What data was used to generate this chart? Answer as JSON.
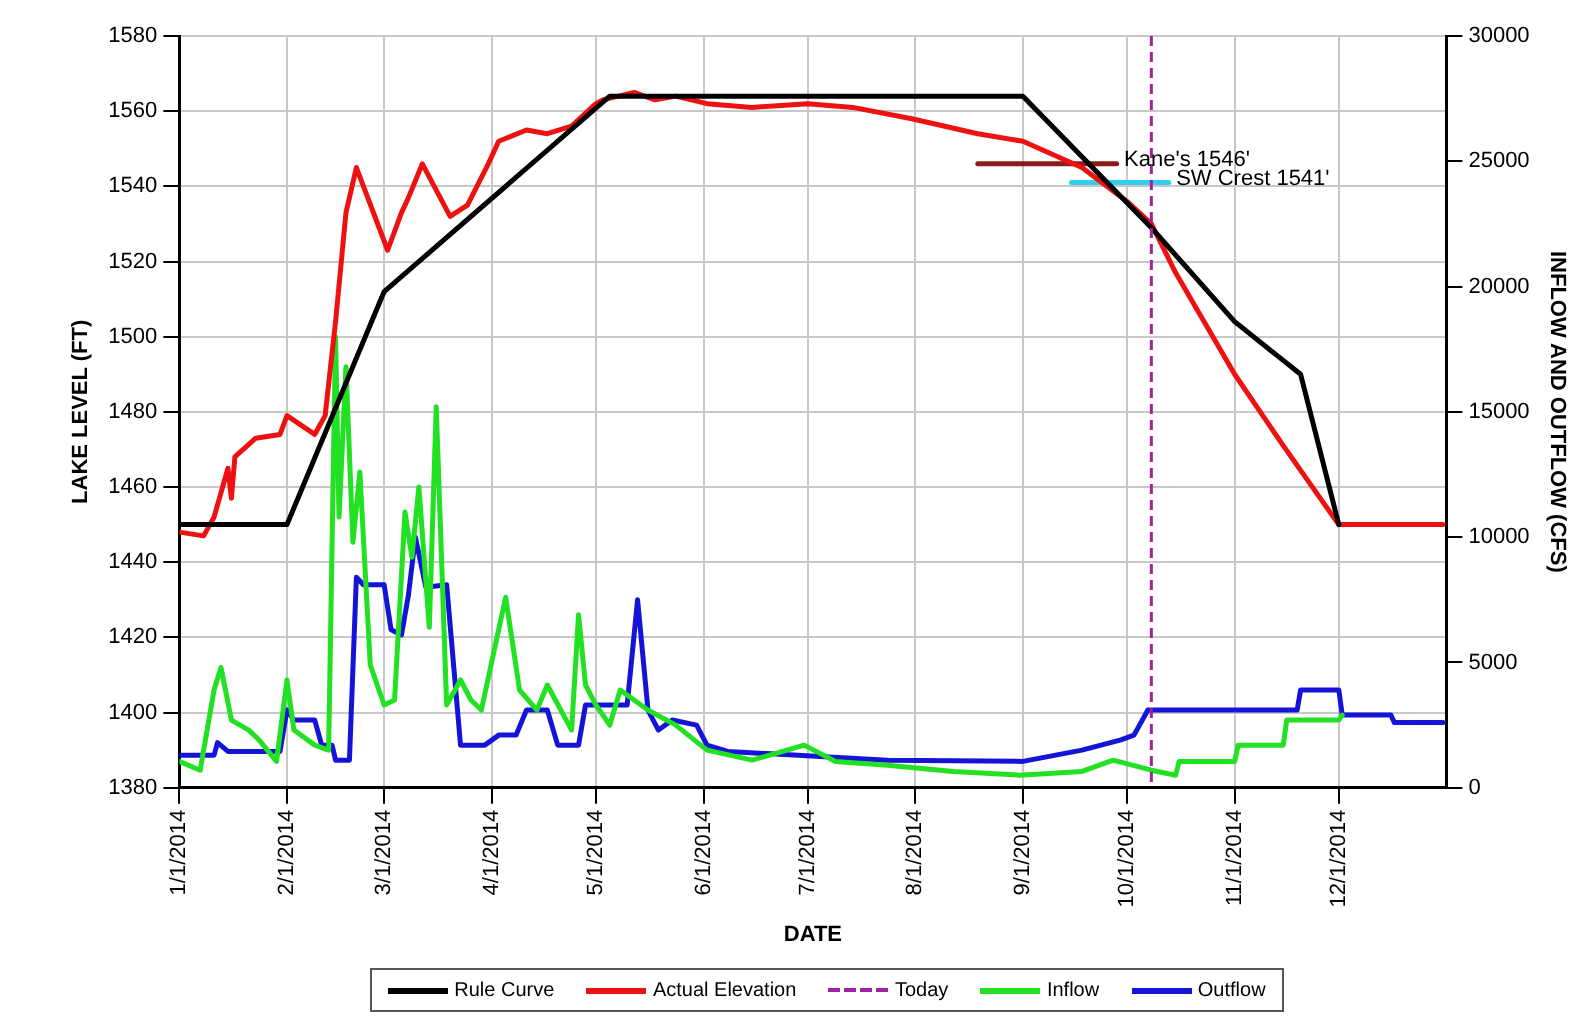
{
  "chart_data": {
    "type": "line",
    "xlabel": "DATE",
    "ylabel": "LAKE LEVEL (FT)",
    "y2label": "INFLOW AND OUTFLOW (CFS)",
    "xlim": [
      "2014-01-01",
      "2015-01-01"
    ],
    "xticks": [
      {
        "value": "2014-01-01",
        "label": "1/1/2014"
      },
      {
        "value": "2014-02-01",
        "label": "2/1/2014"
      },
      {
        "value": "2014-03-01",
        "label": "3/1/2014"
      },
      {
        "value": "2014-04-01",
        "label": "4/1/2014"
      },
      {
        "value": "2014-05-01",
        "label": "5/1/2014"
      },
      {
        "value": "2014-06-01",
        "label": "6/1/2014"
      },
      {
        "value": "2014-07-01",
        "label": "7/1/2014"
      },
      {
        "value": "2014-08-01",
        "label": "8/1/2014"
      },
      {
        "value": "2014-09-01",
        "label": "9/1/2014"
      },
      {
        "value": "2014-10-01",
        "label": "10/1/2014"
      },
      {
        "value": "2014-11-01",
        "label": "11/1/2014"
      },
      {
        "value": "2014-12-01",
        "label": "12/1/2014"
      }
    ],
    "ylim": [
      1380,
      1580
    ],
    "yticks": [
      1380,
      1400,
      1420,
      1440,
      1460,
      1480,
      1500,
      1520,
      1540,
      1560,
      1580
    ],
    "y2lim": [
      0,
      30000
    ],
    "y2ticks": [
      0,
      5000,
      10000,
      15000,
      20000,
      25000,
      30000
    ],
    "grid": true,
    "legend": "bottom",
    "series": [
      {
        "name": "Rule Curve",
        "color": "#000000",
        "x": [
          "2014-01-01",
          "2014-02-01",
          "2014-03-01",
          "2014-05-05",
          "2014-09-01",
          "2014-10-08",
          "2014-11-01",
          "2014-11-20",
          "2014-12-01"
        ],
        "values": [
          1450,
          1450,
          1512,
          1564,
          1564,
          1529,
          1504,
          1490,
          1450
        ]
      },
      {
        "name": "Actual Elevation",
        "color": "#ee1111",
        "x": [
          "2014-01-01",
          "2014-01-08",
          "2014-01-11",
          "2014-01-15",
          "2014-01-16",
          "2014-01-17",
          "2014-01-23",
          "2014-01-30",
          "2014-02-01",
          "2014-02-09",
          "2014-02-12",
          "2014-02-15",
          "2014-02-18",
          "2014-02-21",
          "2014-03-02",
          "2014-03-06",
          "2014-03-08",
          "2014-03-12",
          "2014-03-20",
          "2014-03-25",
          "2014-03-31",
          "2014-04-03",
          "2014-04-11",
          "2014-04-17",
          "2014-04-24",
          "2014-05-01",
          "2014-05-03",
          "2014-05-12",
          "2014-05-18",
          "2014-05-24",
          "2014-06-02",
          "2014-06-15",
          "2014-07-01",
          "2014-07-14",
          "2014-07-31",
          "2014-08-19",
          "2014-09-01",
          "2014-09-18",
          "2014-10-01",
          "2014-10-08",
          "2014-10-15",
          "2014-11-01",
          "2014-11-15",
          "2014-12-01",
          "2014-12-31"
        ],
        "values": [
          1448,
          1447,
          1452,
          1465,
          1457,
          1468,
          1473,
          1474,
          1479,
          1474,
          1479,
          1504,
          1533,
          1545,
          1523,
          1533,
          1537,
          1546,
          1532,
          1535,
          1546,
          1552,
          1555,
          1554,
          1556,
          1562,
          1563,
          1565,
          1563,
          1564,
          1562,
          1561,
          1562,
          1561,
          1558,
          1554,
          1552,
          1545,
          1536,
          1530,
          1517,
          1490,
          1471,
          1450,
          1450
        ]
      },
      {
        "name": "Inflow",
        "color": "#22e022",
        "axis": "y2",
        "x": [
          "2014-01-01",
          "2014-01-07",
          "2014-01-11",
          "2014-01-13",
          "2014-01-16",
          "2014-01-21",
          "2014-01-24",
          "2014-01-29",
          "2014-02-01",
          "2014-02-03",
          "2014-02-09",
          "2014-02-13",
          "2014-02-15",
          "2014-02-16",
          "2014-02-18",
          "2014-02-20",
          "2014-02-22",
          "2014-02-25",
          "2014-03-01",
          "2014-03-04",
          "2014-03-07",
          "2014-03-09",
          "2014-03-11",
          "2014-03-14",
          "2014-03-16",
          "2014-03-19",
          "2014-03-23",
          "2014-03-26",
          "2014-03-29",
          "2014-04-05",
          "2014-04-09",
          "2014-04-14",
          "2014-04-17",
          "2014-04-24",
          "2014-04-26",
          "2014-04-28",
          "2014-05-01",
          "2014-05-05",
          "2014-05-08",
          "2014-05-16",
          "2014-05-24",
          "2014-06-02",
          "2014-06-15",
          "2014-06-30",
          "2014-07-09",
          "2014-07-24",
          "2014-08-12",
          "2014-08-31",
          "2014-09-18",
          "2014-09-27",
          "2014-10-08",
          "2014-10-15",
          "2014-10-16",
          "2014-11-01",
          "2014-11-02",
          "2014-11-15",
          "2014-11-16",
          "2014-12-01",
          "2014-12-02"
        ],
        "values": [
          1050,
          700,
          3900,
          4800,
          2700,
          2300,
          1900,
          1050,
          4300,
          2300,
          1700,
          1500,
          18000,
          10800,
          16800,
          9800,
          12600,
          4900,
          3300,
          3500,
          11000,
          9200,
          12000,
          6400,
          15200,
          3300,
          4300,
          3500,
          3100,
          7600,
          3900,
          3100,
          4100,
          2300,
          6900,
          4100,
          3300,
          2500,
          3900,
          3100,
          2500,
          1500,
          1100,
          1700,
          1050,
          900,
          650,
          500,
          650,
          1100,
          700,
          500,
          1050,
          1050,
          1700,
          1700,
          2700,
          2700,
          2900
        ]
      },
      {
        "name": "Outflow",
        "color": "#1414d8",
        "axis": "y2",
        "x": [
          "2014-01-01",
          "2014-01-11",
          "2014-01-12",
          "2014-01-15",
          "2014-01-30",
          "2014-02-01",
          "2014-02-03",
          "2014-02-09",
          "2014-02-11",
          "2014-02-14",
          "2014-02-15",
          "2014-02-19",
          "2014-02-21",
          "2014-02-23",
          "2014-03-01",
          "2014-03-03",
          "2014-03-06",
          "2014-03-08",
          "2014-03-10",
          "2014-03-13",
          "2014-03-19",
          "2014-03-23",
          "2014-03-30",
          "2014-04-03",
          "2014-04-08",
          "2014-04-11",
          "2014-04-17",
          "2014-04-20",
          "2014-04-26",
          "2014-04-28",
          "2014-05-10",
          "2014-05-13",
          "2014-05-16",
          "2014-05-19",
          "2014-05-23",
          "2014-05-30",
          "2014-06-02",
          "2014-06-08",
          "2014-07-24",
          "2014-09-01",
          "2014-09-18",
          "2014-09-29",
          "2014-10-03",
          "2014-10-07",
          "2014-11-19",
          "2014-11-20",
          "2014-12-01",
          "2014-12-02",
          "2014-12-16",
          "2014-12-17",
          "2014-12-31"
        ],
        "values": [
          1300,
          1300,
          1800,
          1450,
          1450,
          3100,
          2700,
          2700,
          1700,
          1700,
          1100,
          1100,
          8400,
          8100,
          8100,
          6300,
          6100,
          7700,
          10000,
          8000,
          8100,
          1700,
          1700,
          2100,
          2100,
          3100,
          3100,
          1700,
          1700,
          3300,
          3300,
          7500,
          3100,
          2300,
          2700,
          2500,
          1700,
          1450,
          1100,
          1050,
          1500,
          1900,
          2100,
          3100,
          3100,
          3900,
          3900,
          2900,
          2900,
          2600,
          2600
        ]
      },
      {
        "color": "#8b1c1c",
        "x": [
          "2014-08-19",
          "2014-09-28"
        ],
        "values": [
          1546,
          1546
        ]
      },
      {
        "color": "#33ccee",
        "x": [
          "2014-09-15",
          "2014-10-13"
        ],
        "values": [
          1541,
          1541
        ]
      }
    ],
    "ref_lines": [
      {
        "axis": "x",
        "value": "2014-10-08",
        "label": "Today",
        "color": "#a020a0",
        "line_style": "dashed"
      }
    ],
    "annotations": [
      {
        "text": "Kane's 1546'",
        "x": "2014-09-29",
        "y": 1546
      },
      {
        "text": "SW Crest 1541'",
        "x": "2014-10-14",
        "y": 1541
      }
    ]
  }
}
